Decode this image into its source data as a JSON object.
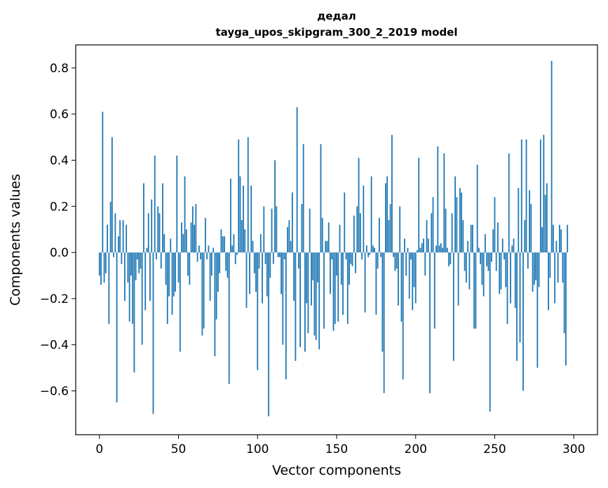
{
  "chart_data": {
    "type": "bar",
    "title_line1": "дедал",
    "title_line2": "tayga_upos_skipgram_300_2_2019 model",
    "xlabel": "Vector components",
    "ylabel": "Components values",
    "xlim": [
      -15,
      315
    ],
    "ylim": [
      -0.79,
      0.9
    ],
    "xticks": [
      0,
      50,
      100,
      150,
      200,
      250,
      300
    ],
    "yticks": [
      -0.6,
      -0.4,
      -0.2,
      0.0,
      0.2,
      0.4,
      0.6,
      0.8
    ],
    "ytick_labels": [
      "−0.6",
      "−0.4",
      "−0.2",
      "0.0",
      "0.2",
      "0.4",
      "0.6",
      "0.8"
    ],
    "xtick_labels": [
      "0",
      "50",
      "100",
      "150",
      "200",
      "250",
      "300"
    ],
    "bar_color": "#1f77b4",
    "values": [
      -0.1,
      -0.14,
      0.61,
      -0.13,
      -0.09,
      0.12,
      -0.31,
      0.22,
      0.5,
      -0.02,
      0.17,
      -0.65,
      0.07,
      0.14,
      -0.05,
      0.14,
      -0.21,
      0.12,
      -0.13,
      -0.3,
      -0.1,
      -0.31,
      -0.52,
      -0.12,
      -0.03,
      -0.09,
      -0.07,
      -0.4,
      0.3,
      -0.25,
      0.02,
      0.17,
      -0.21,
      0.23,
      -0.7,
      0.42,
      -0.03,
      0.2,
      0.17,
      -0.07,
      0.3,
      0.08,
      -0.14,
      -0.31,
      -0.19,
      0.06,
      -0.27,
      -0.19,
      -0.17,
      0.42,
      -0.13,
      -0.43,
      0.13,
      0.08,
      0.33,
      0.1,
      -0.1,
      -0.14,
      0.13,
      0.2,
      0.12,
      0.21,
      -0.04,
      0.03,
      -0.03,
      -0.36,
      -0.33,
      0.15,
      -0.03,
      0.03,
      -0.21,
      -0.1,
      0.02,
      -0.45,
      -0.29,
      -0.17,
      -0.09,
      0.1,
      0.07,
      0.07,
      -0.08,
      -0.11,
      -0.57,
      0.32,
      0.03,
      0.08,
      -0.05,
      -0.01,
      0.49,
      0.33,
      0.14,
      0.29,
      0.1,
      -0.24,
      0.5,
      -0.18,
      0.29,
      0.05,
      -0.09,
      -0.17,
      -0.51,
      -0.07,
      0.08,
      -0.22,
      0.2,
      -0.05,
      -0.19,
      -0.71,
      -0.11,
      0.19,
      -0.05,
      0.4,
      0.2,
      -0.02,
      -0.02,
      -0.18,
      -0.4,
      -0.03,
      -0.55,
      0.11,
      0.14,
      0.05,
      0.26,
      -0.21,
      -0.47,
      0.63,
      -0.07,
      -0.41,
      0.21,
      0.47,
      -0.43,
      -0.22,
      -0.35,
      0.19,
      -0.23,
      -0.12,
      -0.36,
      -0.38,
      -0.13,
      -0.42,
      0.47,
      0.15,
      -0.33,
      0.05,
      0.05,
      0.13,
      -0.18,
      -0.03,
      -0.34,
      -0.31,
      -0.1,
      -0.3,
      0.12,
      -0.14,
      -0.27,
      0.26,
      -0.03,
      -0.31,
      -0.14,
      -0.05,
      -0.06,
      0.16,
      -0.09,
      0.2,
      0.41,
      0.17,
      -0.03,
      0.29,
      -0.26,
      0.03,
      -0.02,
      -0.01,
      0.33,
      0.03,
      0.02,
      -0.27,
      -0.07,
      0.15,
      -0.02,
      -0.43,
      -0.61,
      0.3,
      0.33,
      0.14,
      0.21,
      0.51,
      -0.02,
      -0.08,
      -0.07,
      -0.23,
      0.2,
      -0.3,
      -0.55,
      0.06,
      -0.1,
      0.02,
      -0.2,
      -0.03,
      -0.25,
      -0.15,
      -0.22,
      0.01,
      0.41,
      0.02,
      0.04,
      0.06,
      -0.1,
      0.14,
      0.06,
      -0.61,
      0.17,
      0.24,
      -0.33,
      0.03,
      0.46,
      0.03,
      0.04,
      0.02,
      0.43,
      0.19,
      0.02,
      -0.06,
      -0.05,
      0.17,
      -0.47,
      0.33,
      0.24,
      -0.23,
      0.28,
      0.26,
      0.14,
      -0.08,
      -0.13,
      0.05,
      -0.16,
      0.12,
      0.12,
      -0.33,
      -0.33,
      0.38,
      0.02,
      -0.05,
      -0.14,
      -0.19,
      0.08,
      -0.06,
      -0.08,
      -0.69,
      -0.04,
      0.1,
      0.24,
      -0.08,
      0.13,
      -0.18,
      -0.16,
      0.06,
      -0.03,
      -0.15,
      -0.31,
      0.43,
      -0.22,
      0.03,
      0.06,
      -0.24,
      -0.47,
      0.28,
      -0.39,
      0.49,
      -0.6,
      0.14,
      0.49,
      -0.07,
      0.27,
      0.21,
      -0.17,
      -0.14,
      -0.12,
      -0.5,
      -0.15,
      0.49,
      0.11,
      0.51,
      0.25,
      0.3,
      -0.25,
      -0.11,
      0.83,
      0.12,
      -0.22,
      0.05,
      -0.13,
      0.12,
      0.1,
      -0.13,
      -0.35,
      -0.49,
      0.12
    ]
  }
}
